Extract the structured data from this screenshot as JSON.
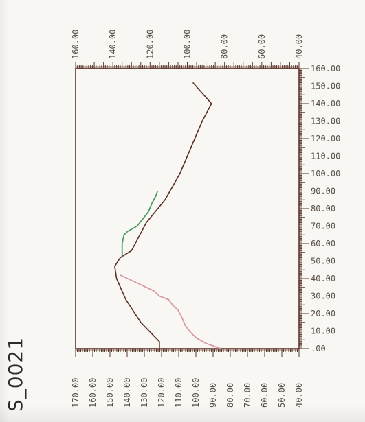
{
  "sample_id": "S_0021",
  "colors": {
    "main_line": "#5a2e22",
    "pink_segment": "#d89aa6",
    "green_segment": "#4c9a62",
    "axis": "#5b3528",
    "label": "#5a5148"
  },
  "chart_data": {
    "type": "line",
    "title": "",
    "xlabel": "",
    "ylabel": "",
    "top_axis": {
      "range": [
        40,
        160
      ],
      "tick_labels": [
        "160.00",
        "140.00",
        "120.00",
        "100.00",
        "80.00",
        "60.00",
        "40.00"
      ]
    },
    "right_axis": {
      "range": [
        0,
        160
      ],
      "tick_labels": [
        ".00",
        "10.00",
        "20.00",
        "30.00",
        "40.00",
        "50.00",
        "60.00",
        "70.00",
        "80.00",
        "90.00",
        "100.00",
        "110.00",
        "120.00",
        "130.00",
        "140.00",
        "150.00",
        "160.00"
      ]
    },
    "bottom_axis": {
      "range": [
        40,
        170
      ],
      "tick_labels": [
        "170.00",
        "160.00",
        "150.00",
        "140.00",
        "130.00",
        "120.00",
        "110.00",
        "100.00",
        "90.00",
        "80.00",
        "70.00",
        "60.00",
        "50.00",
        "40.00"
      ]
    },
    "series": [
      {
        "color": "#5a2e22",
        "points": [
          [
            115,
            0
          ],
          [
            115,
            4
          ],
          [
            125,
            15
          ],
          [
            133,
            28
          ],
          [
            138,
            40
          ],
          [
            139,
            47
          ],
          [
            136,
            52
          ],
          [
            130,
            56
          ],
          [
            127,
            62
          ],
          [
            122,
            72
          ],
          [
            112,
            85
          ],
          [
            104,
            100
          ],
          [
            92,
            130
          ],
          [
            87,
            140
          ],
          [
            97,
            152
          ]
        ]
      },
      {
        "color": "#d89aa6",
        "points": [
          [
            136,
            42
          ],
          [
            130,
            39
          ],
          [
            124,
            36
          ],
          [
            118,
            33
          ],
          [
            115,
            30
          ],
          [
            110,
            28
          ],
          [
            108,
            25
          ],
          [
            105,
            22
          ],
          [
            103,
            18
          ],
          [
            101,
            13
          ],
          [
            98,
            9
          ],
          [
            95,
            6
          ],
          [
            90,
            3
          ],
          [
            82,
            0
          ]
        ]
      },
      {
        "color": "#4c9a62",
        "points": [
          [
            135,
            52
          ],
          [
            135,
            55
          ],
          [
            135,
            60
          ],
          [
            134,
            65
          ],
          [
            132,
            67
          ],
          [
            127,
            70
          ],
          [
            124,
            74
          ],
          [
            121,
            78
          ],
          [
            119,
            83
          ],
          [
            117,
            87
          ],
          [
            116,
            90
          ]
        ]
      }
    ]
  }
}
